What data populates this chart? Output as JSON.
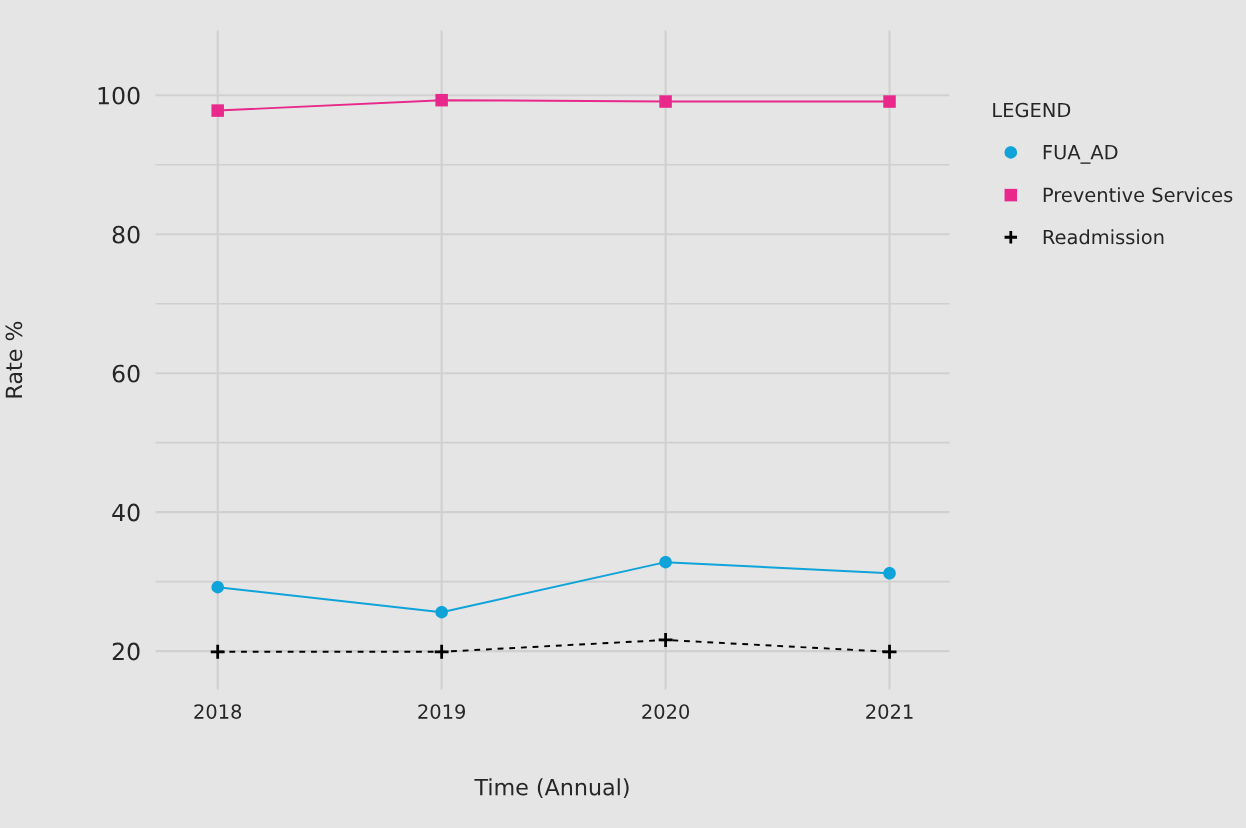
{
  "chart_data": {
    "type": "line",
    "xlabel": "Time (Annual)",
    "ylabel": "Rate %",
    "legend_title": "LEGEND",
    "x": [
      2018,
      2019,
      2020,
      2021
    ],
    "series": [
      {
        "name": "FUA_AD",
        "color": "#0fa3da",
        "marker": "circle",
        "line_style": "solid",
        "values": [
          29.2,
          25.6,
          32.8,
          31.2
        ]
      },
      {
        "name": "Preventive Services",
        "color": "#e8288a",
        "marker": "square",
        "line_style": "solid",
        "values": [
          97.8,
          99.3,
          99.1,
          99.1
        ]
      },
      {
        "name": "Readmission",
        "color": "#000000",
        "marker": "cross",
        "line_style": "dashed",
        "values": [
          19.9,
          19.9,
          21.6,
          19.9
        ]
      }
    ],
    "xlim": [
      2017.72,
      2021.27
    ],
    "xticks": [
      2018,
      2019,
      2020,
      2021
    ],
    "ylim": [
      14.4,
      109.4
    ],
    "yticks": [
      20,
      40,
      60,
      80,
      100
    ],
    "grid": true,
    "legend": "right"
  }
}
